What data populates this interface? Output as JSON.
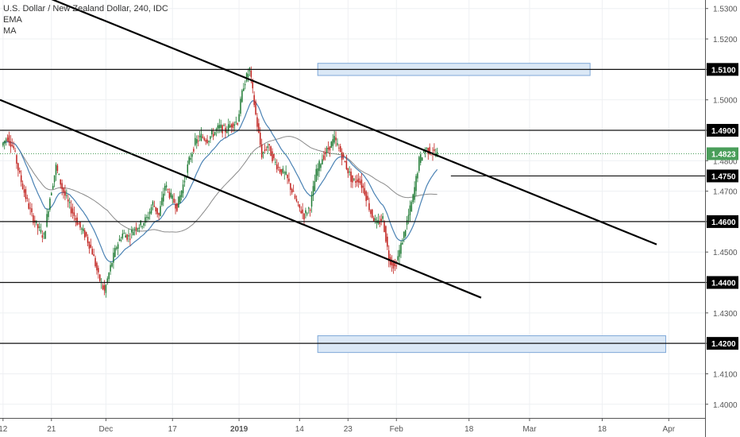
{
  "legend": {
    "title": "U.S. Dollar / New Zealand Dollar, 240, IDC",
    "ema": "EMA",
    "ma": "MA"
  },
  "chart_data": {
    "type": "candlestick",
    "title": "U.S. Dollar / New Zealand Dollar, 240, IDC",
    "ylim": [
      1.3955,
      1.5328
    ],
    "y_ticks": [
      "1.5300",
      "1.5200",
      "1.5100",
      "1.5000",
      "1.4900",
      "1.4800",
      "1.4700",
      "1.4600",
      "1.4500",
      "1.4400",
      "1.4300",
      "1.4200",
      "1.4100",
      "1.4000"
    ],
    "x_ticks": [
      "12",
      "21",
      "Dec",
      "17",
      "2019",
      "14",
      "23",
      "Feb",
      "18",
      "Mar",
      "18",
      "Apr"
    ],
    "x_tick_positions": [
      0,
      8,
      17,
      28,
      39,
      49,
      57,
      65,
      77,
      87,
      99,
      110
    ],
    "x_range": [
      -0.5,
      116
    ],
    "horizontal_levels": [
      {
        "value": 1.51,
        "label": "1.5100"
      },
      {
        "value": 1.49,
        "label": "1.4900"
      },
      {
        "value": 1.46,
        "label": "1.4600"
      },
      {
        "value": 1.44,
        "label": "1.4400"
      },
      {
        "value": 1.42,
        "label": "1.4200"
      },
      {
        "value": 1.475,
        "label": "1.4750",
        "from_x": 74
      }
    ],
    "last_price": {
      "value": 1.4823,
      "label": "1.4823",
      "color": "#4a9e5a"
    },
    "trendlines": [
      {
        "x1": 5,
        "y1": 1.5355,
        "x2": 108,
        "y2": 1.4525
      },
      {
        "x1": -0.5,
        "y1": 1.5,
        "x2": 79,
        "y2": 1.435
      }
    ],
    "zones": [
      {
        "x1": 52,
        "x2": 97,
        "y1": 1.508,
        "y2": 1.512
      },
      {
        "x1": 52,
        "x2": 109.5,
        "y1": 1.417,
        "y2": 1.4225
      }
    ],
    "series_close": [
      1.485,
      1.488,
      1.484,
      1.475,
      1.468,
      1.462,
      1.458,
      1.455,
      1.468,
      1.478,
      1.471,
      1.466,
      1.462,
      1.458,
      1.455,
      1.45,
      1.442,
      1.437,
      1.445,
      1.452,
      1.456,
      1.455,
      1.458,
      1.459,
      1.461,
      1.466,
      1.462,
      1.472,
      1.468,
      1.465,
      1.472,
      1.48,
      1.486,
      1.488,
      1.487,
      1.489,
      1.491,
      1.49,
      1.492,
      1.493,
      1.505,
      1.51,
      1.495,
      1.482,
      1.485,
      1.48,
      1.477,
      1.475,
      1.47,
      1.465,
      1.462,
      1.465,
      1.476,
      1.481,
      1.484,
      1.487,
      1.483,
      1.478,
      1.473,
      1.474,
      1.47,
      1.463,
      1.459,
      1.461,
      1.448,
      1.445,
      1.452,
      1.46,
      1.468,
      1.48,
      1.484,
      1.483,
      1.482
    ],
    "series_colors": {
      "up": "#1e7a33",
      "down": "#c0201c"
    },
    "ema_color": "#4a82b4",
    "ma_color": "#8a8a8a",
    "accent": "#2962ff"
  }
}
